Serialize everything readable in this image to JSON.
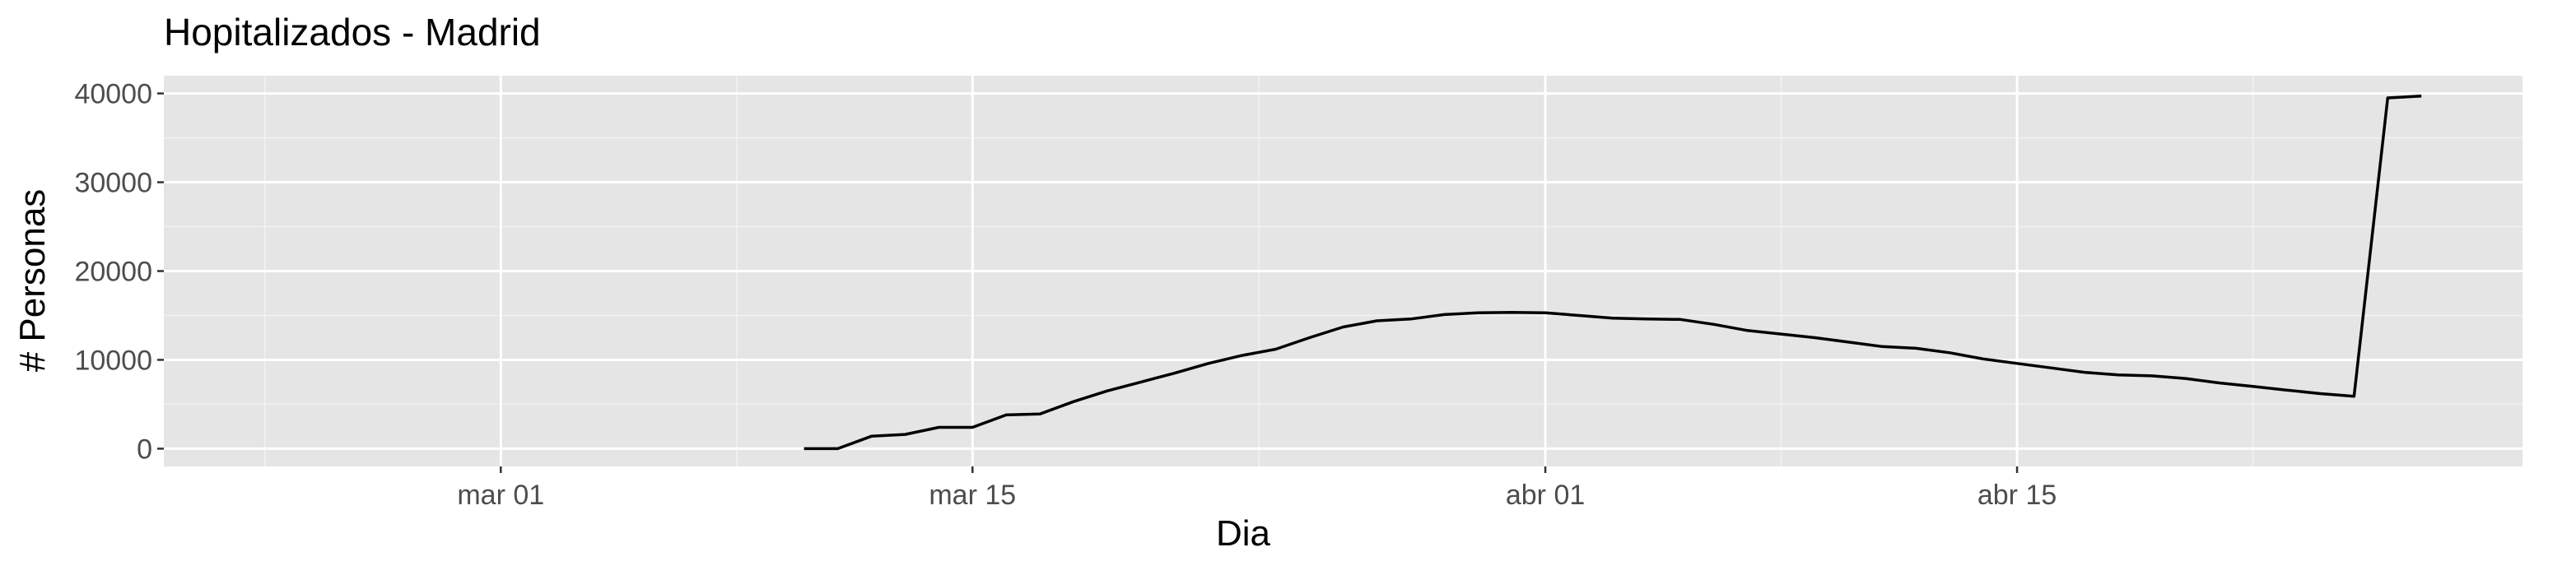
{
  "chart_data": {
    "type": "line",
    "title": "Hopitalizados - Madrid",
    "xlabel": "Dia",
    "ylabel": "# Personas",
    "x_axis": {
      "type": "date",
      "range": [
        "2020-02-20",
        "2020-04-30"
      ],
      "ticks": [
        {
          "date": "2020-03-01",
          "label": "mar 01"
        },
        {
          "date": "2020-03-15",
          "label": "mar 15"
        },
        {
          "date": "2020-04-01",
          "label": "abr 01"
        },
        {
          "date": "2020-04-15",
          "label": "abr 15"
        }
      ]
    },
    "y_axis": {
      "range": [
        -2000,
        42000
      ],
      "ticks": [
        0,
        10000,
        20000,
        30000,
        40000
      ],
      "tick_labels": [
        "0",
        "10000",
        "20000",
        "30000",
        "40000"
      ]
    },
    "grid": true,
    "background": "#e5e5e5",
    "line_color": "#000000",
    "series": [
      {
        "x": [
          "2020-03-10",
          "2020-03-11",
          "2020-03-12",
          "2020-03-13",
          "2020-03-14",
          "2020-03-15",
          "2020-03-16",
          "2020-03-17",
          "2020-03-18",
          "2020-03-19",
          "2020-03-20",
          "2020-03-21",
          "2020-03-22",
          "2020-03-23",
          "2020-03-24",
          "2020-03-25",
          "2020-03-26",
          "2020-03-27",
          "2020-03-28",
          "2020-03-29",
          "2020-03-30",
          "2020-03-31",
          "2020-04-01",
          "2020-04-02",
          "2020-04-03",
          "2020-04-04",
          "2020-04-05",
          "2020-04-06",
          "2020-04-07",
          "2020-04-08",
          "2020-04-09",
          "2020-04-10",
          "2020-04-11",
          "2020-04-12",
          "2020-04-13",
          "2020-04-14",
          "2020-04-15",
          "2020-04-16",
          "2020-04-17",
          "2020-04-18",
          "2020-04-19",
          "2020-04-20",
          "2020-04-21",
          "2020-04-22",
          "2020-04-23",
          "2020-04-24",
          "2020-04-25",
          "2020-04-26"
        ],
        "y": [
          0,
          0,
          1400,
          1600,
          2400,
          2400,
          3800,
          3900,
          5300,
          6500,
          7500,
          8500,
          9600,
          10500,
          11200,
          12500,
          13700,
          14400,
          14600,
          15100,
          15300,
          15350,
          15300,
          15000,
          14700,
          14600,
          14550,
          14000,
          13300,
          12900,
          12500,
          12000,
          11500,
          11300,
          10800,
          10100,
          9600,
          9100,
          8600,
          8300,
          8200,
          7900,
          7400,
          7000,
          6600,
          6200,
          5900,
          39500
        ],
        "extra_points": [
          {
            "x": "2020-04-27",
            "y": 39700
          }
        ]
      }
    ]
  }
}
